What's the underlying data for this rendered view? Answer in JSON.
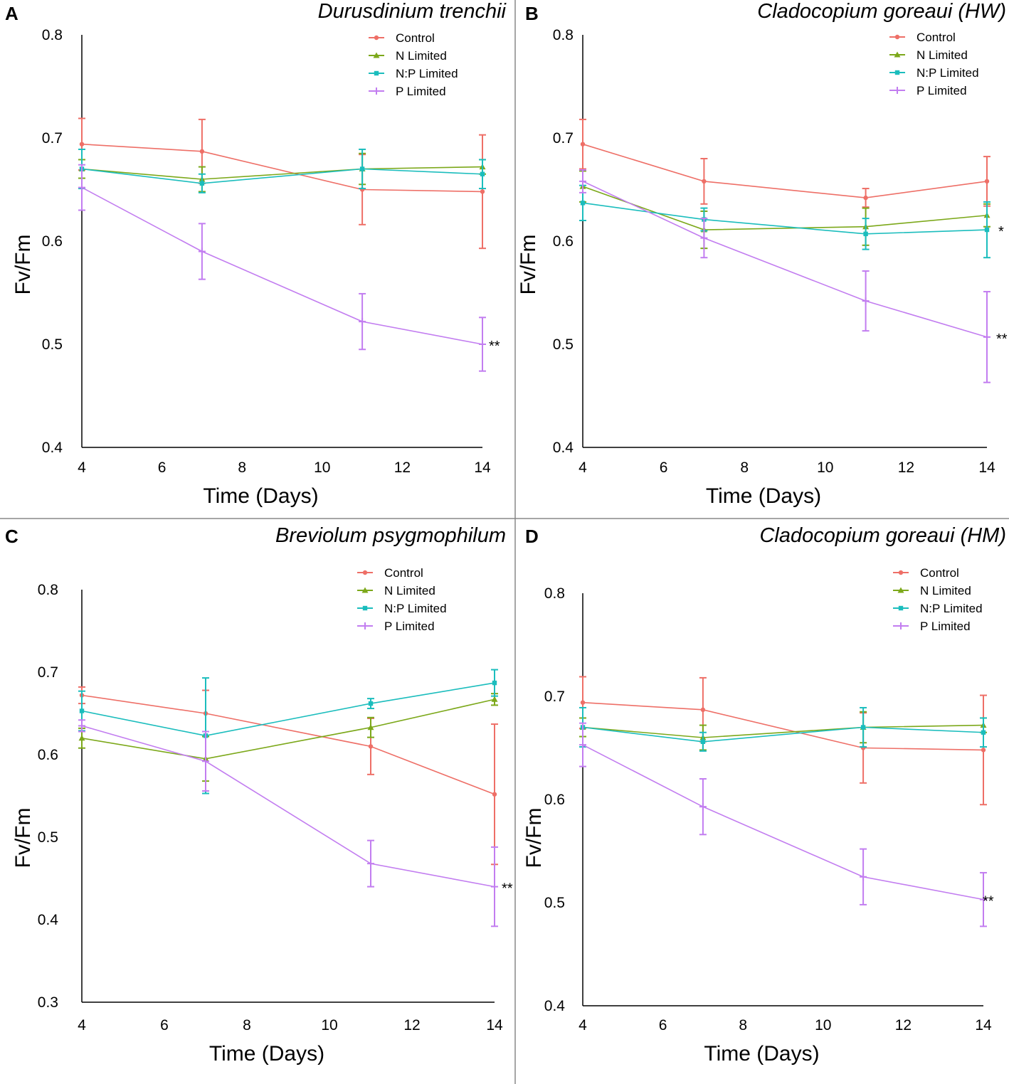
{
  "chart_data": [
    {
      "panel": "A",
      "type": "line",
      "title": "Durusdinium trenchii",
      "xlabel": "Time (Days)",
      "ylabel": "Fv/Fm",
      "xlim": [
        4,
        14
      ],
      "ylim": [
        0.4,
        0.8
      ],
      "xticks": [
        "4",
        "6",
        "8",
        "10",
        "12",
        "14"
      ],
      "yticks": [
        "0.4",
        "0.5",
        "0.6",
        "0.7",
        "0.8"
      ],
      "legend": [
        "Control",
        "N Limited",
        "N:P Limited",
        "P Limited"
      ],
      "x": [
        4,
        7,
        11,
        14
      ],
      "series": [
        {
          "name": "Control",
          "values": [
            0.694,
            0.687,
            0.65,
            0.648
          ],
          "errors": [
            0.025,
            0.031,
            0.034,
            0.055
          ]
        },
        {
          "name": "N Limited",
          "values": [
            0.67,
            0.66,
            0.67,
            0.672
          ],
          "errors": [
            0.009,
            0.012,
            0.015,
            0.007
          ]
        },
        {
          "name": "N:P Limited",
          "values": [
            0.67,
            0.656,
            0.67,
            0.665
          ],
          "errors": [
            0.019,
            0.009,
            0.019,
            0.014
          ]
        },
        {
          "name": "P Limited",
          "values": [
            0.652,
            0.59,
            0.522,
            0.5
          ],
          "errors": [
            0.022,
            0.027,
            0.027,
            0.026
          ]
        }
      ],
      "annotation": "**"
    },
    {
      "panel": "B",
      "type": "line",
      "title": "Cladocopium goreaui (HW)",
      "xlabel": "Time (Days)",
      "ylabel": "Fv/Fm",
      "xlim": [
        4,
        14
      ],
      "ylim": [
        0.4,
        0.8
      ],
      "xticks": [
        "4",
        "6",
        "8",
        "10",
        "12",
        "14"
      ],
      "yticks": [
        "0.4",
        "0.5",
        "0.6",
        "0.7",
        "0.8"
      ],
      "legend": [
        "Control",
        "N Limited",
        "N:P Limited",
        "P Limited"
      ],
      "x": [
        4,
        7,
        11,
        14
      ],
      "series": [
        {
          "name": "Control",
          "values": [
            0.694,
            0.658,
            0.642,
            0.658
          ],
          "errors": [
            0.024,
            0.022,
            0.009,
            0.024
          ]
        },
        {
          "name": "N Limited",
          "values": [
            0.653,
            0.611,
            0.614,
            0.625
          ],
          "errors": [
            0.015,
            0.018,
            0.018,
            0.011
          ]
        },
        {
          "name": "N:P Limited",
          "values": [
            0.637,
            0.621,
            0.607,
            0.611
          ],
          "errors": [
            0.017,
            0.011,
            0.015,
            0.027
          ]
        },
        {
          "name": "P Limited",
          "values": [
            0.658,
            0.603,
            0.542,
            0.507
          ],
          "errors": [
            0.011,
            0.019,
            0.029,
            0.044
          ]
        }
      ],
      "annotation_np": "*",
      "annotation": "**"
    },
    {
      "panel": "C",
      "type": "line",
      "title": "Breviolum psygmophilum",
      "xlabel": "Time (Days)",
      "ylabel": "Fv/Fm",
      "xlim": [
        4,
        14
      ],
      "ylim": [
        0.3,
        0.8
      ],
      "xticks": [
        "4",
        "6",
        "8",
        "10",
        "12",
        "14"
      ],
      "yticks": [
        "0.3",
        "0.4",
        "0.5",
        "0.6",
        "0.7",
        "0.8"
      ],
      "legend": [
        "Control",
        "N Limited",
        "N:P Limited",
        "P Limited"
      ],
      "x": [
        4,
        7,
        11,
        14
      ],
      "series": [
        {
          "name": "Control",
          "values": [
            0.672,
            0.65,
            0.61,
            0.552
          ],
          "errors": [
            0.01,
            0.028,
            0.034,
            0.085
          ]
        },
        {
          "name": "N Limited",
          "values": [
            0.62,
            0.595,
            0.633,
            0.667
          ],
          "errors": [
            0.012,
            0.027,
            0.012,
            0.007
          ]
        },
        {
          "name": "N:P Limited",
          "values": [
            0.653,
            0.623,
            0.662,
            0.687
          ],
          "errors": [
            0.024,
            0.07,
            0.006,
            0.016
          ]
        },
        {
          "name": "P Limited",
          "values": [
            0.635,
            0.592,
            0.468,
            0.44
          ],
          "errors": [
            0.007,
            0.036,
            0.028,
            0.048
          ]
        }
      ],
      "annotation": "**"
    },
    {
      "panel": "D",
      "type": "line",
      "title": "Cladocopium goreaui (HM)",
      "xlabel": "Time (Days)",
      "ylabel": "Fv/Fm",
      "xlim": [
        4,
        14
      ],
      "ylim": [
        0.4,
        0.8
      ],
      "xticks": [
        "4",
        "6",
        "8",
        "10",
        "12",
        "14"
      ],
      "yticks": [
        "0.4",
        "0.5",
        "0.6",
        "0.7",
        "0.8"
      ],
      "legend": [
        "Control",
        "N Limited",
        "N:P Limited",
        "P Limited"
      ],
      "x": [
        4,
        7,
        11,
        14
      ],
      "series": [
        {
          "name": "Control",
          "values": [
            0.694,
            0.687,
            0.65,
            0.648
          ],
          "errors": [
            0.025,
            0.031,
            0.034,
            0.053
          ]
        },
        {
          "name": "N Limited",
          "values": [
            0.67,
            0.66,
            0.67,
            0.672
          ],
          "errors": [
            0.009,
            0.012,
            0.015,
            0.007
          ]
        },
        {
          "name": "N:P Limited",
          "values": [
            0.67,
            0.656,
            0.67,
            0.665
          ],
          "errors": [
            0.019,
            0.009,
            0.019,
            0.014
          ]
        },
        {
          "name": "P Limited",
          "values": [
            0.653,
            0.593,
            0.525,
            0.503
          ],
          "errors": [
            0.021,
            0.027,
            0.027,
            0.026
          ]
        }
      ],
      "annotation": "**"
    }
  ],
  "colors": {
    "Control": "#ee6f67",
    "N Limited": "#7ca81a",
    "N:P Limited": "#1bbdbd",
    "P Limited": "#c27df0"
  }
}
